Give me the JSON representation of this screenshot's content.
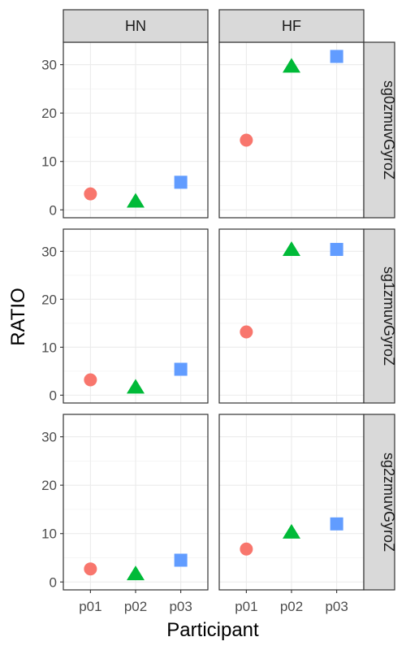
{
  "chart_data": {
    "type": "scatter",
    "xlabel": "Participant",
    "ylabel": "RATIO",
    "categories": [
      "p01",
      "p02",
      "p03"
    ],
    "ylim": [
      0,
      33
    ],
    "yticks": [
      0,
      10,
      20,
      30
    ],
    "grid": true,
    "legend": "none",
    "columns": [
      "HN",
      "HF"
    ],
    "rows": [
      "sg0zmuvGyroZ",
      "sg1zmuvGyroZ",
      "sg2zmuvGyroZ"
    ],
    "point_styles": [
      {
        "category": "p01",
        "shape": "circle",
        "color": "#F8766D"
      },
      {
        "category": "p02",
        "shape": "triangle",
        "color": "#00BA38"
      },
      {
        "category": "p03",
        "shape": "square",
        "color": "#619CFF"
      }
    ],
    "panels": [
      {
        "row": "sg0zmuvGyroZ",
        "column": "HN",
        "values": [
          3.3,
          1.8,
          5.7
        ]
      },
      {
        "row": "sg0zmuvGyroZ",
        "column": "HF",
        "values": [
          14.4,
          29.7,
          31.7
        ]
      },
      {
        "row": "sg1zmuvGyroZ",
        "column": "HN",
        "values": [
          3.2,
          1.7,
          5.4
        ]
      },
      {
        "row": "sg1zmuvGyroZ",
        "column": "HF",
        "values": [
          13.2,
          30.4,
          30.4
        ]
      },
      {
        "row": "sg2zmuvGyroZ",
        "column": "HN",
        "values": [
          2.7,
          1.7,
          4.5
        ]
      },
      {
        "row": "sg2zmuvGyroZ",
        "column": "HF",
        "values": [
          6.8,
          10.3,
          12.0
        ]
      }
    ]
  }
}
